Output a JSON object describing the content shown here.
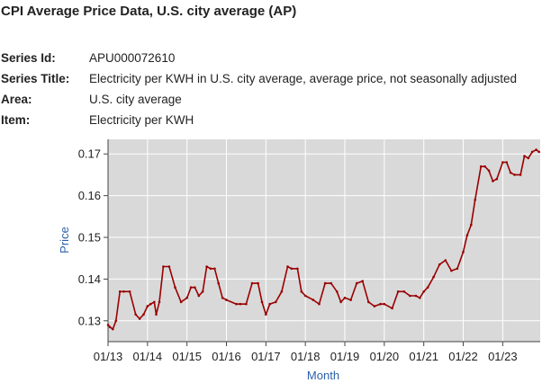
{
  "page": {
    "title": "CPI Average Price Data, U.S. city average (AP)"
  },
  "meta": [
    {
      "label": "Series Id:",
      "value": "APU000072610"
    },
    {
      "label": "Series Title:",
      "value": "Electricity per KWH in U.S. city average, average price, not seasonally adjusted"
    },
    {
      "label": "Area:",
      "value": "U.S. city average"
    },
    {
      "label": "Item:",
      "value": "Electricity per KWH"
    }
  ],
  "colors": {
    "line": "#990000",
    "plot_bg": "#d9d9d9",
    "grid": "#ffffff",
    "axis_title": "#2b5fa8"
  },
  "chart_data": {
    "type": "line",
    "title": "",
    "xlabel": "Month",
    "ylabel": "Price",
    "ylim": [
      0.125,
      0.1735
    ],
    "xlim": [
      2013.0,
      2023.95
    ],
    "yticks": [
      0.13,
      0.14,
      0.15,
      0.16,
      0.17
    ],
    "ytick_labels": [
      "0.13",
      "0.14",
      "0.15",
      "0.16",
      "0.17"
    ],
    "xticks": [
      2013,
      2014,
      2015,
      2016,
      2017,
      2018,
      2019,
      2020,
      2021,
      2022,
      2023
    ],
    "xtick_labels": [
      "01/13",
      "01/14",
      "01/15",
      "01/16",
      "01/17",
      "01/18",
      "01/19",
      "01/20",
      "01/21",
      "01/22",
      "01/23"
    ],
    "grid": true,
    "series": [
      {
        "name": "Electricity per KWH",
        "x": [
          2013.0,
          2013.05,
          2013.12,
          2013.2,
          2013.3,
          2013.4,
          2013.55,
          2013.7,
          2013.8,
          2013.9,
          2014.0,
          2014.08,
          2014.17,
          2014.22,
          2014.3,
          2014.4,
          2014.55,
          2014.7,
          2014.85,
          2015.0,
          2015.1,
          2015.2,
          2015.3,
          2015.4,
          2015.5,
          2015.6,
          2015.7,
          2015.8,
          2015.9,
          2016.0,
          2016.25,
          2016.35,
          2016.5,
          2016.65,
          2016.8,
          2016.9,
          2017.0,
          2017.1,
          2017.25,
          2017.4,
          2017.55,
          2017.65,
          2017.8,
          2017.9,
          2018.0,
          2018.2,
          2018.35,
          2018.5,
          2018.65,
          2018.8,
          2018.9,
          2019.0,
          2019.15,
          2019.3,
          2019.45,
          2019.6,
          2019.75,
          2019.9,
          2020.0,
          2020.2,
          2020.35,
          2020.5,
          2020.65,
          2020.8,
          2020.9,
          2021.0,
          2021.1,
          2021.25,
          2021.4,
          2021.55,
          2021.7,
          2021.85,
          2022.0,
          2022.1,
          2022.2,
          2022.3,
          2022.45,
          2022.55,
          2022.65,
          2022.75,
          2022.85,
          2023.0,
          2023.1,
          2023.2,
          2023.3,
          2023.45,
          2023.55,
          2023.65,
          2023.75,
          2023.85,
          2023.92
        ],
        "values": [
          0.129,
          0.1285,
          0.128,
          0.13,
          0.137,
          0.137,
          0.137,
          0.1315,
          0.1305,
          0.1315,
          0.1335,
          0.134,
          0.1345,
          0.1315,
          0.1345,
          0.143,
          0.143,
          0.138,
          0.1345,
          0.1355,
          0.138,
          0.138,
          0.136,
          0.137,
          0.143,
          0.1425,
          0.1425,
          0.139,
          0.1355,
          0.135,
          0.134,
          0.134,
          0.134,
          0.139,
          0.139,
          0.1345,
          0.1315,
          0.134,
          0.1345,
          0.137,
          0.143,
          0.1425,
          0.1425,
          0.137,
          0.136,
          0.135,
          0.134,
          0.139,
          0.139,
          0.137,
          0.1345,
          0.1355,
          0.135,
          0.139,
          0.1395,
          0.1345,
          0.1335,
          0.134,
          0.134,
          0.133,
          0.137,
          0.137,
          0.136,
          0.136,
          0.1355,
          0.137,
          0.138,
          0.1405,
          0.1435,
          0.1445,
          0.142,
          0.1425,
          0.1465,
          0.1505,
          0.153,
          0.159,
          0.167,
          0.167,
          0.166,
          0.1635,
          0.164,
          0.168,
          0.168,
          0.1655,
          0.165,
          0.165,
          0.1695,
          0.169,
          0.1705,
          0.171,
          0.1705
        ]
      }
    ]
  }
}
